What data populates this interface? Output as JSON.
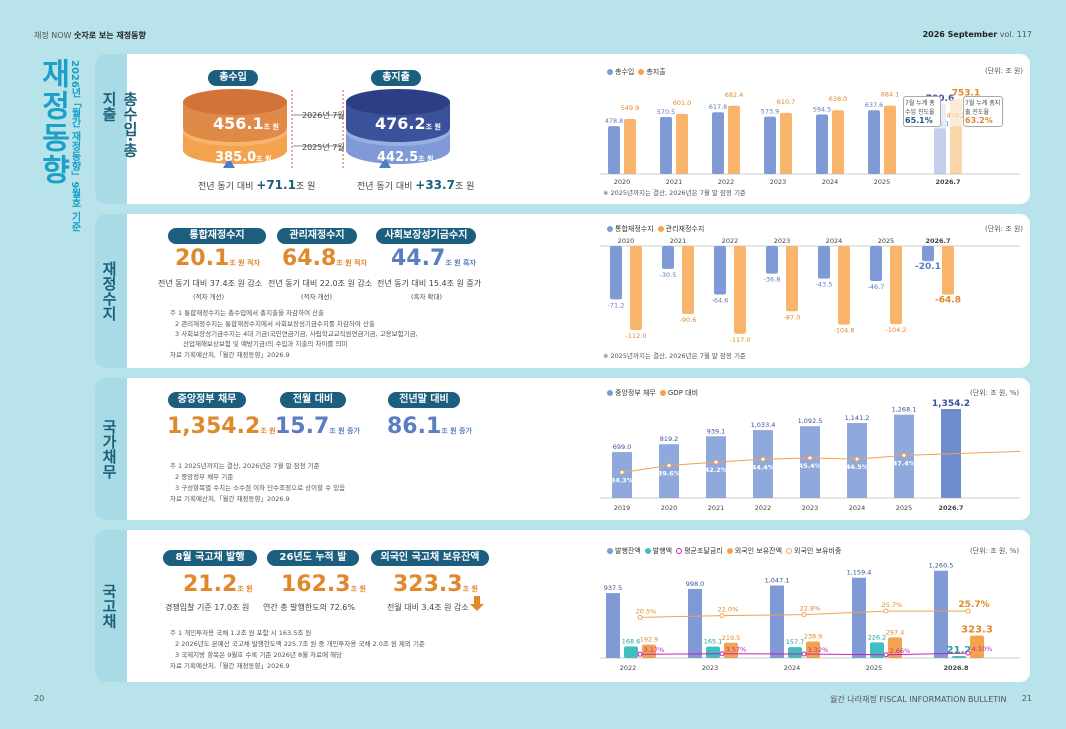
{
  "header": {
    "left_prefix": "재정 NOW",
    "left_title": "숫자로 보는 재정동향",
    "right_month": "2026 September",
    "right_vol": "vol. 117"
  },
  "footer": {
    "left_page": "20",
    "right_title": "월간 나라재정 FISCAL INFORMATION BULLETIN",
    "right_page": "21"
  },
  "page": {
    "title": "재정동향",
    "subtitle": "2026년「월간 재정동향」9월호 기준"
  },
  "section1": {
    "tab": "총수입·총지출",
    "pill_rev": "총수입",
    "pill_exp": "총지출",
    "rev_2026": "456.1",
    "rev_2025": "385.0",
    "exp_2026": "476.2",
    "exp_2025": "442.5",
    "unit": "조 원",
    "label_2026": "2026년 7월",
    "label_2025": "2025년 7월",
    "rev_delta_prefix": "전년 동기 대비",
    "rev_delta": "+71.1",
    "exp_delta": "+33.7",
    "delta_unit": "조 원",
    "legend_rev": "총수입",
    "legend_exp": "총지출",
    "chart_unit": "(단위: 조 원)",
    "note": "※ 2025년까지는 결산, 2026년은 7월 말 잠정 기준",
    "callout_rev": "7월 누계 총수입 진도율",
    "callout_rev_val": "65.1%",
    "callout_exp": "7월 누계 총지출 진도율",
    "callout_exp_val": "63.2%"
  },
  "section2": {
    "tab": "재정수지",
    "pills": [
      "통합재정수지",
      "관리재정수지",
      "사회보장성기금수지"
    ],
    "vals": [
      "20.1",
      "64.8",
      "44.7"
    ],
    "val_units": [
      "조 원 적자",
      "조 원 적자",
      "조 원 흑자"
    ],
    "lines": [
      "전년 동기 대비 37.4조 원 감소",
      "전년 동기 대비 22.0조 원 감소",
      "전년 동기 대비 15.4조 원 증가"
    ],
    "subs": [
      "(적자 개선)",
      "(적자 개선)",
      "(흑자 확대)"
    ],
    "notes": [
      "주 1   통합재정수지는 총수입에서 총지출을 차감하여 산출",
      "2   관리재정수지는 통합재정수지에서 사회보장성기금수지를 차감하여 산출",
      "3   사회보장성기금수지는 4대 기금(국민연금기금, 사립학교교직원연금기금, 고용보험기금,",
      "산업재해보상보험 및 예방기금)의 수입과 지출의 차이를 의미",
      "자료   기획예산처,「월간 재정동향」2026.9"
    ],
    "legend_a": "통합재정수지",
    "legend_b": "관리재정수지",
    "chart_unit": "(단위: 조 원)",
    "note": "※ 2025년까지는 결산, 2026년은 7월 말 잠정 기준"
  },
  "section3": {
    "tab": "국가채무",
    "pills": [
      "중앙정부 채무",
      "전월 대비",
      "전년말 대비"
    ],
    "vals": [
      "1,354.2",
      "15.7",
      "86.1"
    ],
    "val_units": [
      "조 원",
      "조 원 증가",
      "조 원 증가"
    ],
    "notes": [
      "주 1   2025년까지는 결산, 2026년은 7월 말 잠정 기준",
      "2   중앙정부 채무 기준",
      "3   구성항목별 수치는 소수점 이하 단수조정으로 상이할 수 있음",
      "자료   기획예산처,「월간 재정동향」2026.9"
    ],
    "legend_a": "중앙정부 채무",
    "legend_b": "GDP 대비",
    "chart_unit": "(단위: 조 원, %)"
  },
  "section4": {
    "tab": "국고채",
    "pills": [
      "8월 국고채 발행규모",
      "26년도 누적 발행액",
      "외국인 국고채 보유잔액"
    ],
    "vals": [
      "21.2",
      "162.3",
      "323.3"
    ],
    "val_units": [
      "조 원",
      "조 원",
      "조 원"
    ],
    "lines": [
      "경쟁입찰 기준 17.0조 원",
      "연간 총 발행한도의 72.6%",
      "전월 대비 3.4조 원 감소"
    ],
    "notes": [
      "주 1   개인투자용 국채 1.2조 원 포함 시 163.5조 원",
      "2   2026년도 본예산 국고채 발행한도액 225.7조 원 중 개인투자용 국채 2.0조 원 제외 기준",
      "3   국제지방 항목은 9월호 수록 기준 2026년 8월 자료에 해당",
      "자료   기획예산처,「월간 재정동향」2026.9"
    ],
    "legend": [
      "발행잔액",
      "발행액",
      "평균조달금리",
      "외국인 보유잔액",
      "외국인 보유비중"
    ],
    "chart_unit": "(단위: 조 원, %)"
  },
  "chart_data": [
    {
      "type": "bar",
      "title": "",
      "categories": [
        "2020",
        "2021",
        "2022",
        "2023",
        "2024",
        "2025",
        "2026.7"
      ],
      "series": [
        {
          "name": "총수입",
          "values": [
            478.8,
            570.5,
            617.8,
            573.9,
            594.5,
            637.6,
            456.1
          ]
        },
        {
          "name": "총지출",
          "values": [
            549.9,
            601.0,
            682.4,
            610.7,
            638.0,
            684.1,
            476.2
          ]
        }
      ],
      "extra": {
        "annual_2026": [
          700.6,
          753.1
        ]
      }
    },
    {
      "type": "bar",
      "title": "",
      "categories": [
        "2020",
        "2021",
        "2022",
        "2023",
        "2024",
        "2025",
        "2026.7"
      ],
      "series": [
        {
          "name": "통합재정수지",
          "values": [
            -71.2,
            -30.5,
            -64.6,
            -36.8,
            -43.5,
            -46.7,
            -20.1
          ]
        },
        {
          "name": "관리재정수지",
          "values": [
            -112.0,
            -90.6,
            -117.0,
            -87.0,
            -104.8,
            -104.2,
            -64.8
          ]
        }
      ]
    },
    {
      "type": "bar",
      "title": "",
      "categories": [
        "2019",
        "2020",
        "2021",
        "2022",
        "2023",
        "2024",
        "2025",
        "2026.7"
      ],
      "series": [
        {
          "name": "중앙정부 채무",
          "values": [
            699.0,
            819.2,
            939.1,
            1033.4,
            1092.5,
            1141.2,
            1268.1,
            1354.2
          ]
        },
        {
          "name": "GDP 대비",
          "values": [
            34.3,
            39.6,
            42.2,
            44.4,
            45.4,
            44.5,
            47.4,
            null
          ]
        }
      ]
    },
    {
      "type": "bar",
      "title": "",
      "categories": [
        "2022",
        "2023",
        "2024",
        "2025",
        "2026.8"
      ],
      "series": [
        {
          "name": "발행잔액",
          "values": [
            937.5,
            998.0,
            1047.1,
            1159.4,
            1260.5
          ]
        },
        {
          "name": "발행액",
          "values": [
            168.6,
            165.1,
            157.7,
            226.2,
            21.2
          ]
        },
        {
          "name": "평균조달금리",
          "values": [
            3.17,
            3.57,
            3.32,
            2.66,
            4.1
          ]
        },
        {
          "name": "외국인 보유잔액",
          "values": [
            192.9,
            219.5,
            238.9,
            297.4,
            323.3
          ]
        },
        {
          "name": "외국인 보유비중",
          "values": [
            20.5,
            22.0,
            22.8,
            25.7,
            25.7
          ]
        }
      ]
    }
  ]
}
